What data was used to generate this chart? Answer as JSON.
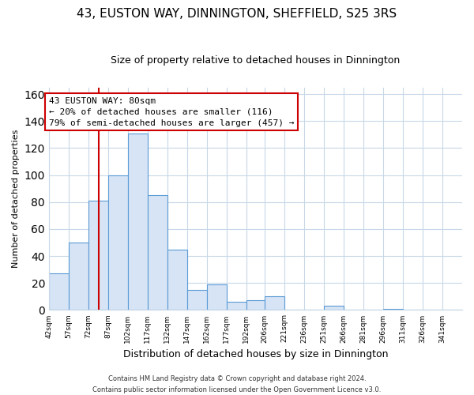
{
  "title": "43, EUSTON WAY, DINNINGTON, SHEFFIELD, S25 3RS",
  "subtitle": "Size of property relative to detached houses in Dinnington",
  "xlabel": "Distribution of detached houses by size in Dinnington",
  "ylabel": "Number of detached properties",
  "bar_edges": [
    42,
    57,
    72,
    87,
    102,
    117,
    132,
    147,
    162,
    177,
    192,
    206,
    221,
    236,
    251,
    266,
    281,
    296,
    311,
    326,
    341
  ],
  "bar_heights": [
    27,
    50,
    81,
    100,
    131,
    85,
    45,
    15,
    19,
    6,
    7,
    10,
    0,
    0,
    3,
    0,
    0,
    1,
    0,
    0,
    0
  ],
  "bar_color": "#d6e4f5",
  "bar_edge_color": "#5b9bd5",
  "vline_x": 80,
  "vline_color": "#cc0000",
  "ylim": [
    0,
    165
  ],
  "yticks": [
    0,
    20,
    40,
    60,
    80,
    100,
    120,
    140,
    160
  ],
  "tick_labels": [
    "42sqm",
    "57sqm",
    "72sqm",
    "87sqm",
    "102sqm",
    "117sqm",
    "132sqm",
    "147sqm",
    "162sqm",
    "177sqm",
    "192sqm",
    "206sqm",
    "221sqm",
    "236sqm",
    "251sqm",
    "266sqm",
    "281sqm",
    "296sqm",
    "311sqm",
    "326sqm",
    "341sqm"
  ],
  "annotation_title": "43 EUSTON WAY: 80sqm",
  "annotation_line1": "← 20% of detached houses are smaller (116)",
  "annotation_line2": "79% of semi-detached houses are larger (457) →",
  "footnote1": "Contains HM Land Registry data © Crown copyright and database right 2024.",
  "footnote2": "Contains public sector information licensed under the Open Government Licence v3.0.",
  "background_color": "#ffffff",
  "grid_color": "#c8d8e8"
}
